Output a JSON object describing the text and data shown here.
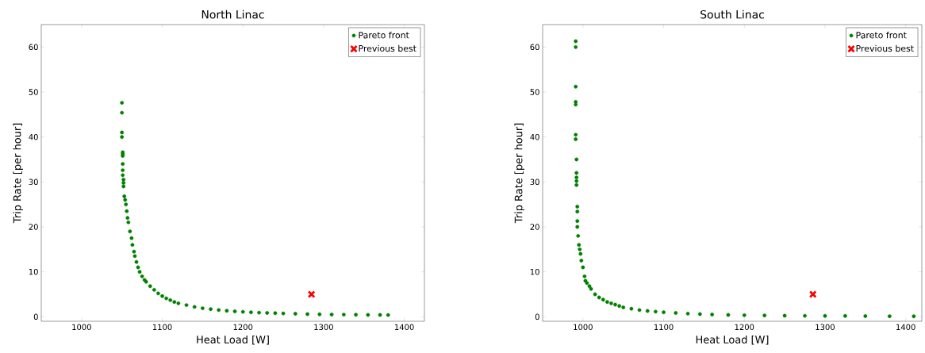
{
  "chart_data": [
    {
      "type": "scatter",
      "title": "North Linac",
      "xlabel": "Heat Load [W]",
      "ylabel": "Trip Rate [per hour]",
      "xlim": [
        950,
        1425
      ],
      "ylim": [
        -1,
        65
      ],
      "xticks": [
        1000,
        1100,
        1200,
        1300,
        1400
      ],
      "yticks": [
        0,
        10,
        20,
        30,
        40,
        50,
        60
      ],
      "legend": "top right",
      "series": [
        {
          "name": "Pareto front",
          "color": "#008000",
          "marker": "circle",
          "x": [
            1050,
            1050,
            1050,
            1050,
            1051,
            1051,
            1051,
            1051,
            1051,
            1051,
            1052,
            1052,
            1052,
            1053,
            1054,
            1055,
            1056,
            1057,
            1058,
            1060,
            1062,
            1063,
            1065,
            1066,
            1068,
            1070,
            1072,
            1075,
            1078,
            1080,
            1085,
            1090,
            1095,
            1100,
            1105,
            1110,
            1115,
            1120,
            1130,
            1140,
            1150,
            1160,
            1170,
            1180,
            1190,
            1200,
            1210,
            1220,
            1230,
            1240,
            1250,
            1265,
            1280,
            1295,
            1310,
            1325,
            1340,
            1355,
            1370,
            1380
          ],
          "values": [
            47.6,
            45.4,
            41,
            40,
            36.6,
            36.2,
            35.8,
            34,
            32.6,
            31.5,
            30.5,
            29.8,
            29,
            26.8,
            26,
            25,
            23.5,
            22,
            21,
            19,
            17.5,
            16,
            14.5,
            13.5,
            12.2,
            11,
            10,
            9,
            8.2,
            7.8,
            6.8,
            6,
            5.2,
            4.6,
            4.1,
            3.7,
            3.3,
            3.0,
            2.6,
            2.2,
            1.9,
            1.7,
            1.5,
            1.35,
            1.2,
            1.1,
            1.0,
            0.92,
            0.85,
            0.8,
            0.75,
            0.68,
            0.6,
            0.55,
            0.5,
            0.48,
            0.45,
            0.43,
            0.41,
            0.4
          ]
        },
        {
          "name": "Previous best",
          "color": "#ff0000",
          "marker": "cross",
          "x": [
            1285
          ],
          "values": [
            5
          ]
        }
      ]
    },
    {
      "type": "scatter",
      "title": "South Linac",
      "xlabel": "Heat Load [W]",
      "ylabel": "Trip Rate [per hour]",
      "xlim": [
        950,
        1420
      ],
      "ylim": [
        -1,
        65
      ],
      "xticks": [
        1000,
        1100,
        1200,
        1300,
        1400
      ],
      "yticks": [
        0,
        10,
        20,
        30,
        40,
        50,
        60
      ],
      "legend": "top right",
      "series": [
        {
          "name": "Pareto front",
          "color": "#008000",
          "marker": "circle",
          "x": [
            991,
            991,
            991,
            991,
            991,
            991,
            991,
            992,
            992,
            992,
            992,
            992,
            993,
            993,
            993,
            993,
            994,
            995,
            996,
            997,
            998,
            1000,
            1002,
            1003,
            1005,
            1008,
            1010,
            1015,
            1020,
            1025,
            1030,
            1035,
            1040,
            1045,
            1050,
            1060,
            1070,
            1080,
            1090,
            1100,
            1115,
            1130,
            1145,
            1160,
            1180,
            1200,
            1225,
            1250,
            1275,
            1300,
            1325,
            1350,
            1380,
            1410
          ],
          "values": [
            61.3,
            60,
            51.2,
            47.8,
            47.2,
            40.5,
            39.5,
            35,
            32,
            31,
            30.2,
            29.3,
            24.5,
            23.4,
            21.3,
            20,
            18,
            16,
            15,
            14,
            12.5,
            11,
            9,
            8,
            7.5,
            6.8,
            6.2,
            5,
            4.3,
            3.8,
            3.3,
            3,
            2.7,
            2.4,
            2.1,
            1.8,
            1.5,
            1.3,
            1.15,
            1.0,
            0.85,
            0.7,
            0.6,
            0.5,
            0.42,
            0.35,
            0.3,
            0.25,
            0.22,
            0.2,
            0.18,
            0.15,
            0.12,
            0.1
          ]
        },
        {
          "name": "Previous best",
          "color": "#ff0000",
          "marker": "cross",
          "x": [
            1285
          ],
          "values": [
            5
          ]
        }
      ]
    }
  ]
}
